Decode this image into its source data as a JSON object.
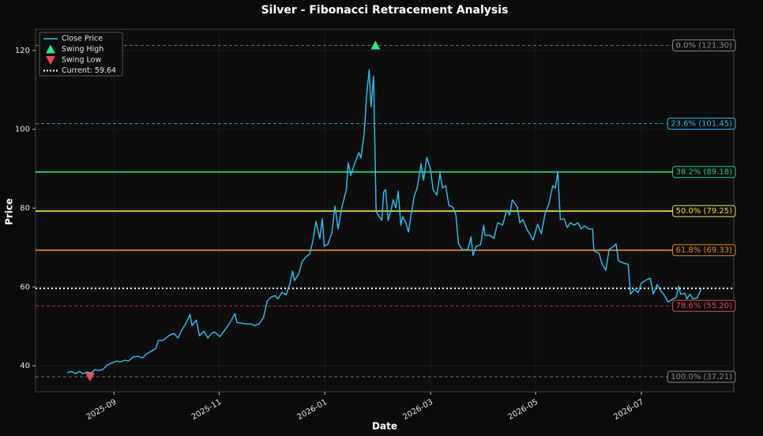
{
  "chart_data": {
    "type": "line",
    "title": "Silver - Fibonacci Retracement Analysis",
    "xlabel": "Date",
    "ylabel": "Price",
    "xlim": [
      2025.543,
      2026.646
    ],
    "ylim": [
      33.4,
      125.4
    ],
    "xticks": [
      {
        "value": 2025.667,
        "label": "2025-09"
      },
      {
        "value": 2025.833,
        "label": "2025-11"
      },
      {
        "value": 2026.0,
        "label": "2026-01"
      },
      {
        "value": 2026.167,
        "label": "2026-03"
      },
      {
        "value": 2026.333,
        "label": "2026-05"
      },
      {
        "value": 2026.5,
        "label": "2026-07"
      }
    ],
    "yticks": [
      40,
      60,
      80,
      100,
      120
    ],
    "grid": true,
    "legend": "upper left",
    "series": [
      {
        "name": "Close Price",
        "color": "#29c5f6",
        "x": [
          2025.593,
          2025.599,
          2025.606,
          2025.612,
          2025.618,
          2025.624,
          2025.631,
          2025.637,
          2025.643,
          2025.649,
          2025.656,
          2025.662,
          2025.671,
          2025.677,
          2025.684,
          2025.69,
          2025.697,
          2025.705,
          2025.712,
          2025.718,
          2025.727,
          2025.733,
          2025.737,
          2025.744,
          2025.749,
          2025.755,
          2025.762,
          2025.768,
          2025.774,
          2025.78,
          2025.787,
          2025.79,
          2025.797,
          2025.802,
          2025.809,
          2025.815,
          2025.821,
          2025.826,
          2025.834,
          2025.84,
          2025.849,
          2025.858,
          2025.861,
          2025.868,
          2025.876,
          2025.884,
          2025.889,
          2025.896,
          2025.903,
          2025.909,
          2025.915,
          2025.921,
          2025.926,
          2025.932,
          2025.939,
          2025.945,
          2025.949,
          2025.952,
          2025.959,
          2025.964,
          2025.97,
          2025.976,
          2025.981,
          2025.986,
          2025.992,
          2025.996,
          2025.999,
          2026.005,
          2026.011,
          2026.016,
          2026.021,
          2026.027,
          2026.034,
          2026.037,
          2026.041,
          2026.047,
          2026.054,
          2026.057,
          2026.062,
          2026.066,
          2026.07,
          2026.073,
          2026.077,
          2026.081,
          2026.085,
          2026.09,
          2026.093,
          2026.096,
          2026.1,
          2026.105,
          2026.108,
          2026.112,
          2026.116,
          2026.12,
          2026.123,
          2026.128,
          2026.132,
          2026.136,
          2026.141,
          2026.146,
          2026.152,
          2026.156,
          2026.161,
          2026.167,
          2026.171,
          2026.177,
          2026.182,
          2026.186,
          2026.191,
          2026.196,
          2026.202,
          2026.207,
          2026.211,
          2026.217,
          2026.226,
          2026.231,
          2026.234,
          2026.239,
          2026.246,
          2026.251,
          2026.253,
          2026.261,
          2026.267,
          2026.273,
          2026.281,
          2026.287,
          2026.292,
          2026.296,
          2026.304,
          2026.308,
          2026.313,
          2026.319,
          2026.325,
          2026.329,
          2026.336,
          2026.342,
          2026.348,
          2026.354,
          2026.36,
          2026.364,
          2026.368,
          2026.372,
          2026.378,
          2026.383,
          2026.388,
          2026.394,
          2026.4,
          2026.405,
          2026.41,
          2026.417,
          2026.423,
          2026.425,
          2026.433,
          2026.438,
          2026.444,
          2026.449,
          2026.455,
          2026.46,
          2026.464,
          2026.473,
          2026.479,
          2026.483,
          2026.489,
          2026.495,
          2026.5,
          2026.508,
          2026.514,
          2026.519,
          2026.525,
          2026.53,
          2026.536,
          2026.542,
          2026.549,
          2026.555,
          2026.559,
          2026.562,
          2026.569,
          2026.572,
          2026.577,
          2026.581,
          2026.588,
          2026.595
        ],
        "values": [
          38.2,
          38.6,
          38.0,
          38.6,
          38.0,
          38.4,
          38.2,
          39.0,
          38.8,
          39.0,
          40.2,
          40.6,
          41.2,
          41.0,
          41.4,
          41.2,
          42.2,
          42.4,
          42.0,
          43.0,
          43.8,
          44.4,
          46.4,
          46.4,
          47.0,
          47.8,
          48.2,
          47.0,
          49.0,
          50.6,
          53.0,
          50.2,
          51.6,
          47.6,
          48.8,
          47.0,
          48.2,
          48.6,
          47.4,
          48.6,
          50.6,
          53.2,
          51.0,
          50.8,
          50.6,
          50.6,
          50.2,
          50.6,
          52.2,
          56.4,
          57.4,
          57.8,
          57.0,
          58.6,
          58.0,
          61.0,
          64.0,
          61.6,
          63.4,
          66.4,
          67.6,
          68.4,
          71.5,
          76.7,
          72.3,
          77.3,
          70.3,
          70.9,
          73.7,
          80.5,
          74.7,
          80.3,
          84.7,
          91.5,
          88.3,
          91.3,
          94.1,
          92.7,
          98.7,
          108.7,
          115.1,
          105.7,
          113.5,
          79.1,
          78.1,
          76.9,
          84.1,
          84.7,
          76.9,
          79.7,
          82.1,
          80.1,
          84.3,
          75.7,
          77.9,
          76.3,
          73.9,
          78.1,
          82.9,
          85.3,
          91.3,
          87.1,
          92.9,
          89.9,
          84.7,
          83.3,
          88.9,
          85.1,
          85.7,
          80.7,
          80.3,
          78.3,
          71.0,
          69.5,
          69.5,
          72.7,
          68.0,
          70.3,
          70.7,
          75.7,
          73.1,
          73.1,
          72.3,
          76.3,
          75.7,
          79.5,
          78.3,
          82.1,
          80.3,
          76.3,
          77.1,
          74.7,
          73.1,
          71.9,
          75.9,
          73.5,
          78.7,
          81.1,
          85.7,
          85.1,
          89.1,
          77.1,
          77.3,
          75.1,
          76.3,
          75.7,
          76.3,
          74.7,
          75.5,
          74.7,
          74.7,
          69.1,
          68.6,
          65.8,
          64.2,
          69.5,
          70.1,
          70.9,
          66.6,
          66.0,
          65.8,
          58.2,
          59.4,
          58.6,
          61.0,
          61.8,
          62.2,
          58.2,
          60.6,
          59.2,
          58.0,
          56.2,
          56.8,
          57.4,
          60.2,
          58.2,
          58.4,
          57.0,
          58.2,
          57.0,
          57.2,
          59.64
        ]
      }
    ],
    "swing_high": {
      "name": "Swing High",
      "x": 2026.08,
      "value": 121.3,
      "color": "#2ee88a"
    },
    "swing_low": {
      "name": "Swing Low",
      "x": 2025.629,
      "value": 37.21,
      "color": "#f04b4b"
    },
    "current": {
      "name": "Current: 59.64",
      "value": 59.64,
      "color": "#ffffff"
    },
    "fib_levels": [
      {
        "value": 121.3,
        "label": "0.0% (121.30)",
        "color": "#8a8a8a",
        "dashed": true
      },
      {
        "value": 101.45,
        "label": "23.6% (101.45)",
        "color": "#29b6f6",
        "dashed": true
      },
      {
        "value": 89.18,
        "label": "38.2% (89.18)",
        "color": "#2ecc71",
        "dashed": false
      },
      {
        "value": 79.25,
        "label": "50.0% (79.25)",
        "color": "#e8e43a",
        "dashed": false
      },
      {
        "value": 69.33,
        "label": "61.8% (69.33)",
        "color": "#e6862a",
        "dashed": false
      },
      {
        "value": 55.2,
        "label": "78.6% (55.20)",
        "color": "#e0474a",
        "dashed": true
      },
      {
        "value": 37.21,
        "label": "100.0% (37.21)",
        "color": "#8a8a8a",
        "dashed": true
      }
    ]
  }
}
